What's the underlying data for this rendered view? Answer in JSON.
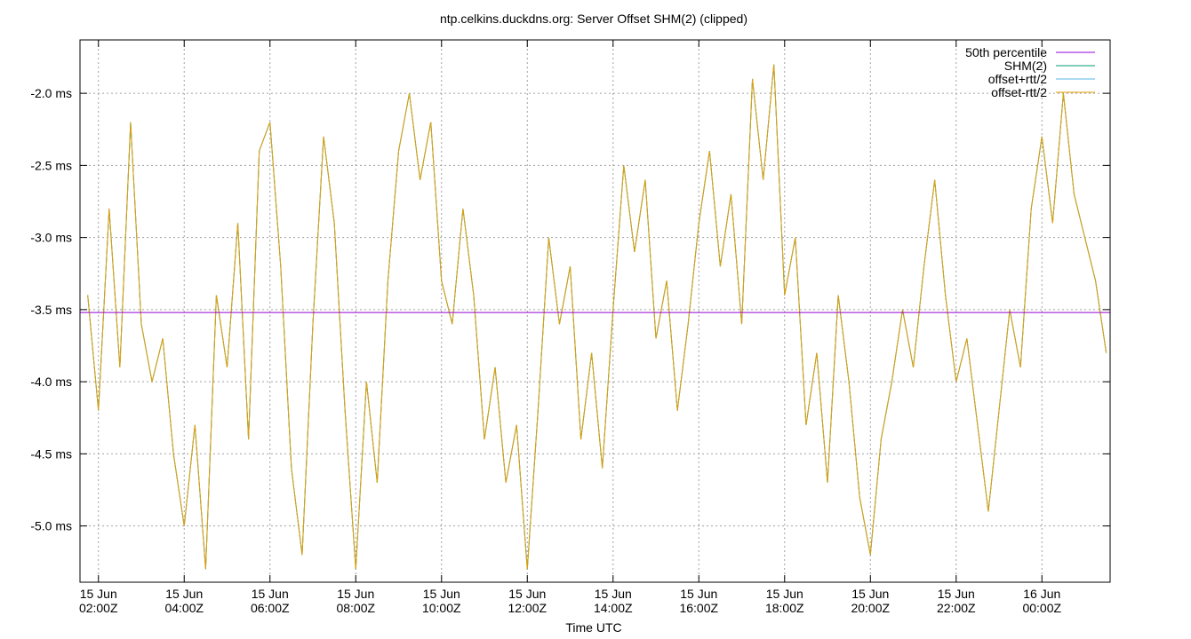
{
  "chart_data": {
    "type": "line",
    "title": "ntp.celkins.duckdns.org: Server Offset SHM(2) (clipped)",
    "x_label": "Time UTC",
    "xlim": [
      1.57,
      25.59
    ],
    "ylim": [
      -5.39,
      -1.63
    ],
    "xticks": [
      {
        "value": 2,
        "label": "15 Jun 02:00Z"
      },
      {
        "value": 4,
        "label": "15 Jun 04:00Z"
      },
      {
        "value": 6,
        "label": "15 Jun 06:00Z"
      },
      {
        "value": 8,
        "label": "15 Jun 08:00Z"
      },
      {
        "value": 10,
        "label": "15 Jun 10:00Z"
      },
      {
        "value": 12,
        "label": "15 Jun 12:00Z"
      },
      {
        "value": 14,
        "label": "15 Jun 14:00Z"
      },
      {
        "value": 16,
        "label": "15 Jun 16:00Z"
      },
      {
        "value": 18,
        "label": "15 Jun 18:00Z"
      },
      {
        "value": 20,
        "label": "15 Jun 20:00Z"
      },
      {
        "value": 22,
        "label": "15 Jun 22:00Z"
      },
      {
        "value": 24,
        "label": "16 Jun 00:00Z"
      }
    ],
    "yticks": [
      {
        "value": -2.0,
        "label": "-2.0 ms"
      },
      {
        "value": -2.5,
        "label": "-2.5 ms"
      },
      {
        "value": -3.0,
        "label": "-3.0 ms"
      },
      {
        "value": -3.5,
        "label": "-3.5 ms"
      },
      {
        "value": -4.0,
        "label": "-4.0 ms"
      },
      {
        "value": -4.5,
        "label": "-4.5 ms"
      },
      {
        "value": -5.0,
        "label": "-5.0 ms"
      }
    ],
    "grid": true,
    "legend": "top-right",
    "x": [
      1.75,
      2,
      2.25,
      2.5,
      2.75,
      3,
      3.25,
      3.5,
      3.75,
      4,
      4.25,
      4.5,
      4.75,
      5,
      5.25,
      5.5,
      5.75,
      6,
      6.25,
      6.5,
      6.75,
      7,
      7.25,
      7.5,
      7.75,
      8,
      8.25,
      8.5,
      8.75,
      9,
      9.25,
      9.5,
      9.75,
      10,
      10.25,
      10.5,
      10.75,
      11,
      11.25,
      11.5,
      11.75,
      12,
      12.25,
      12.5,
      12.75,
      13,
      13.25,
      13.5,
      13.75,
      14,
      14.25,
      14.5,
      14.75,
      15,
      15.25,
      15.5,
      15.75,
      16,
      16.25,
      16.5,
      16.75,
      17,
      17.25,
      17.5,
      17.75,
      18,
      18.25,
      18.5,
      18.75,
      19,
      19.25,
      19.5,
      19.75,
      20,
      20.25,
      20.5,
      20.75,
      21,
      21.25,
      21.5,
      21.75,
      22,
      22.25,
      22.5,
      22.75,
      23,
      23.25,
      23.5,
      23.75,
      24,
      24.25,
      24.5,
      24.75,
      25,
      25.25,
      25.5
    ],
    "series": [
      {
        "name": "SHM(2)",
        "color": "#009e73",
        "values": [
          -3.4,
          -4.2,
          -2.8,
          -3.9,
          -2.2,
          -3.6,
          -4.0,
          -3.7,
          -4.5,
          -5.0,
          -4.3,
          -5.3,
          -3.4,
          -3.9,
          -2.9,
          -4.4,
          -2.4,
          -2.2,
          -3.2,
          -4.6,
          -5.2,
          -3.6,
          -2.3,
          -2.9,
          -4.2,
          -5.3,
          -4.0,
          -4.7,
          -3.3,
          -2.4,
          -2.0,
          -2.6,
          -2.2,
          -3.3,
          -3.6,
          -2.8,
          -3.4,
          -4.4,
          -3.9,
          -4.7,
          -4.3,
          -5.3,
          -4.2,
          -3.0,
          -3.6,
          -3.2,
          -4.4,
          -3.8,
          -4.6,
          -3.5,
          -2.5,
          -3.1,
          -2.6,
          -3.7,
          -3.3,
          -4.2,
          -3.6,
          -2.9,
          -2.4,
          -3.2,
          -2.7,
          -3.6,
          -1.9,
          -2.6,
          -1.8,
          -3.4,
          -3.0,
          -4.3,
          -3.8,
          -4.7,
          -3.4,
          -4.0,
          -4.8,
          -5.2,
          -4.4,
          -4.0,
          -3.5,
          -3.9,
          -3.2,
          -2.6,
          -3.4,
          -4.0,
          -3.7,
          -4.3,
          -4.9,
          -4.2,
          -3.5,
          -3.9,
          -2.8,
          -2.3,
          -2.9,
          -2.0,
          -2.7,
          -3.0,
          -3.3,
          -3.8
        ]
      },
      {
        "name": "offset+rtt/2",
        "color": "#56b4e9",
        "values": [
          -3.4,
          -4.2,
          -2.8,
          -3.9,
          -2.2,
          -3.6,
          -4.0,
          -3.7,
          -4.5,
          -5.0,
          -4.3,
          -5.3,
          -3.4,
          -3.9,
          -2.9,
          -4.4,
          -2.4,
          -2.2,
          -3.2,
          -4.6,
          -5.2,
          -3.6,
          -2.3,
          -2.9,
          -4.2,
          -5.3,
          -4.0,
          -4.7,
          -3.3,
          -2.4,
          -2.0,
          -2.6,
          -2.2,
          -3.3,
          -3.6,
          -2.8,
          -3.4,
          -4.4,
          -3.9,
          -4.7,
          -4.3,
          -5.3,
          -4.2,
          -3.0,
          -3.6,
          -3.2,
          -4.4,
          -3.8,
          -4.6,
          -3.5,
          -2.5,
          -3.1,
          -2.6,
          -3.7,
          -3.3,
          -4.2,
          -3.6,
          -2.9,
          -2.4,
          -3.2,
          -2.7,
          -3.6,
          -1.9,
          -2.6,
          -1.8,
          -3.4,
          -3.0,
          -4.3,
          -3.8,
          -4.7,
          -3.4,
          -4.0,
          -4.8,
          -5.2,
          -4.4,
          -4.0,
          -3.5,
          -3.9,
          -3.2,
          -2.6,
          -3.4,
          -4.0,
          -3.7,
          -4.3,
          -4.9,
          -4.2,
          -3.5,
          -3.9,
          -2.8,
          -2.3,
          -2.9,
          -2.0,
          -2.7,
          -3.0,
          -3.3,
          -3.8
        ]
      },
      {
        "name": "offset-rtt/2",
        "color": "#e69f00",
        "values": [
          -3.4,
          -4.2,
          -2.8,
          -3.9,
          -2.2,
          -3.6,
          -4.0,
          -3.7,
          -4.5,
          -5.0,
          -4.3,
          -5.3,
          -3.4,
          -3.9,
          -2.9,
          -4.4,
          -2.4,
          -2.2,
          -3.2,
          -4.6,
          -5.2,
          -3.6,
          -2.3,
          -2.9,
          -4.2,
          -5.3,
          -4.0,
          -4.7,
          -3.3,
          -2.4,
          -2.0,
          -2.6,
          -2.2,
          -3.3,
          -3.6,
          -2.8,
          -3.4,
          -4.4,
          -3.9,
          -4.7,
          -4.3,
          -5.3,
          -4.2,
          -3.0,
          -3.6,
          -3.2,
          -4.4,
          -3.8,
          -4.6,
          -3.5,
          -2.5,
          -3.1,
          -2.6,
          -3.7,
          -3.3,
          -4.2,
          -3.6,
          -2.9,
          -2.4,
          -3.2,
          -2.7,
          -3.6,
          -1.9,
          -2.6,
          -1.8,
          -3.4,
          -3.0,
          -4.3,
          -3.8,
          -4.7,
          -3.4,
          -4.0,
          -4.8,
          -5.2,
          -4.4,
          -4.0,
          -3.5,
          -3.9,
          -3.2,
          -2.6,
          -3.4,
          -4.0,
          -3.7,
          -4.3,
          -4.9,
          -4.2,
          -3.5,
          -3.9,
          -2.8,
          -2.3,
          -2.9,
          -2.0,
          -2.7,
          -3.0,
          -3.3,
          -3.8
        ]
      },
      {
        "name": "50th percentile",
        "color": "#9400d3",
        "x": [
          1.57,
          25.59
        ],
        "values": [
          -3.52,
          -3.52
        ]
      }
    ],
    "legend_order": [
      3,
      0,
      1,
      2
    ]
  }
}
